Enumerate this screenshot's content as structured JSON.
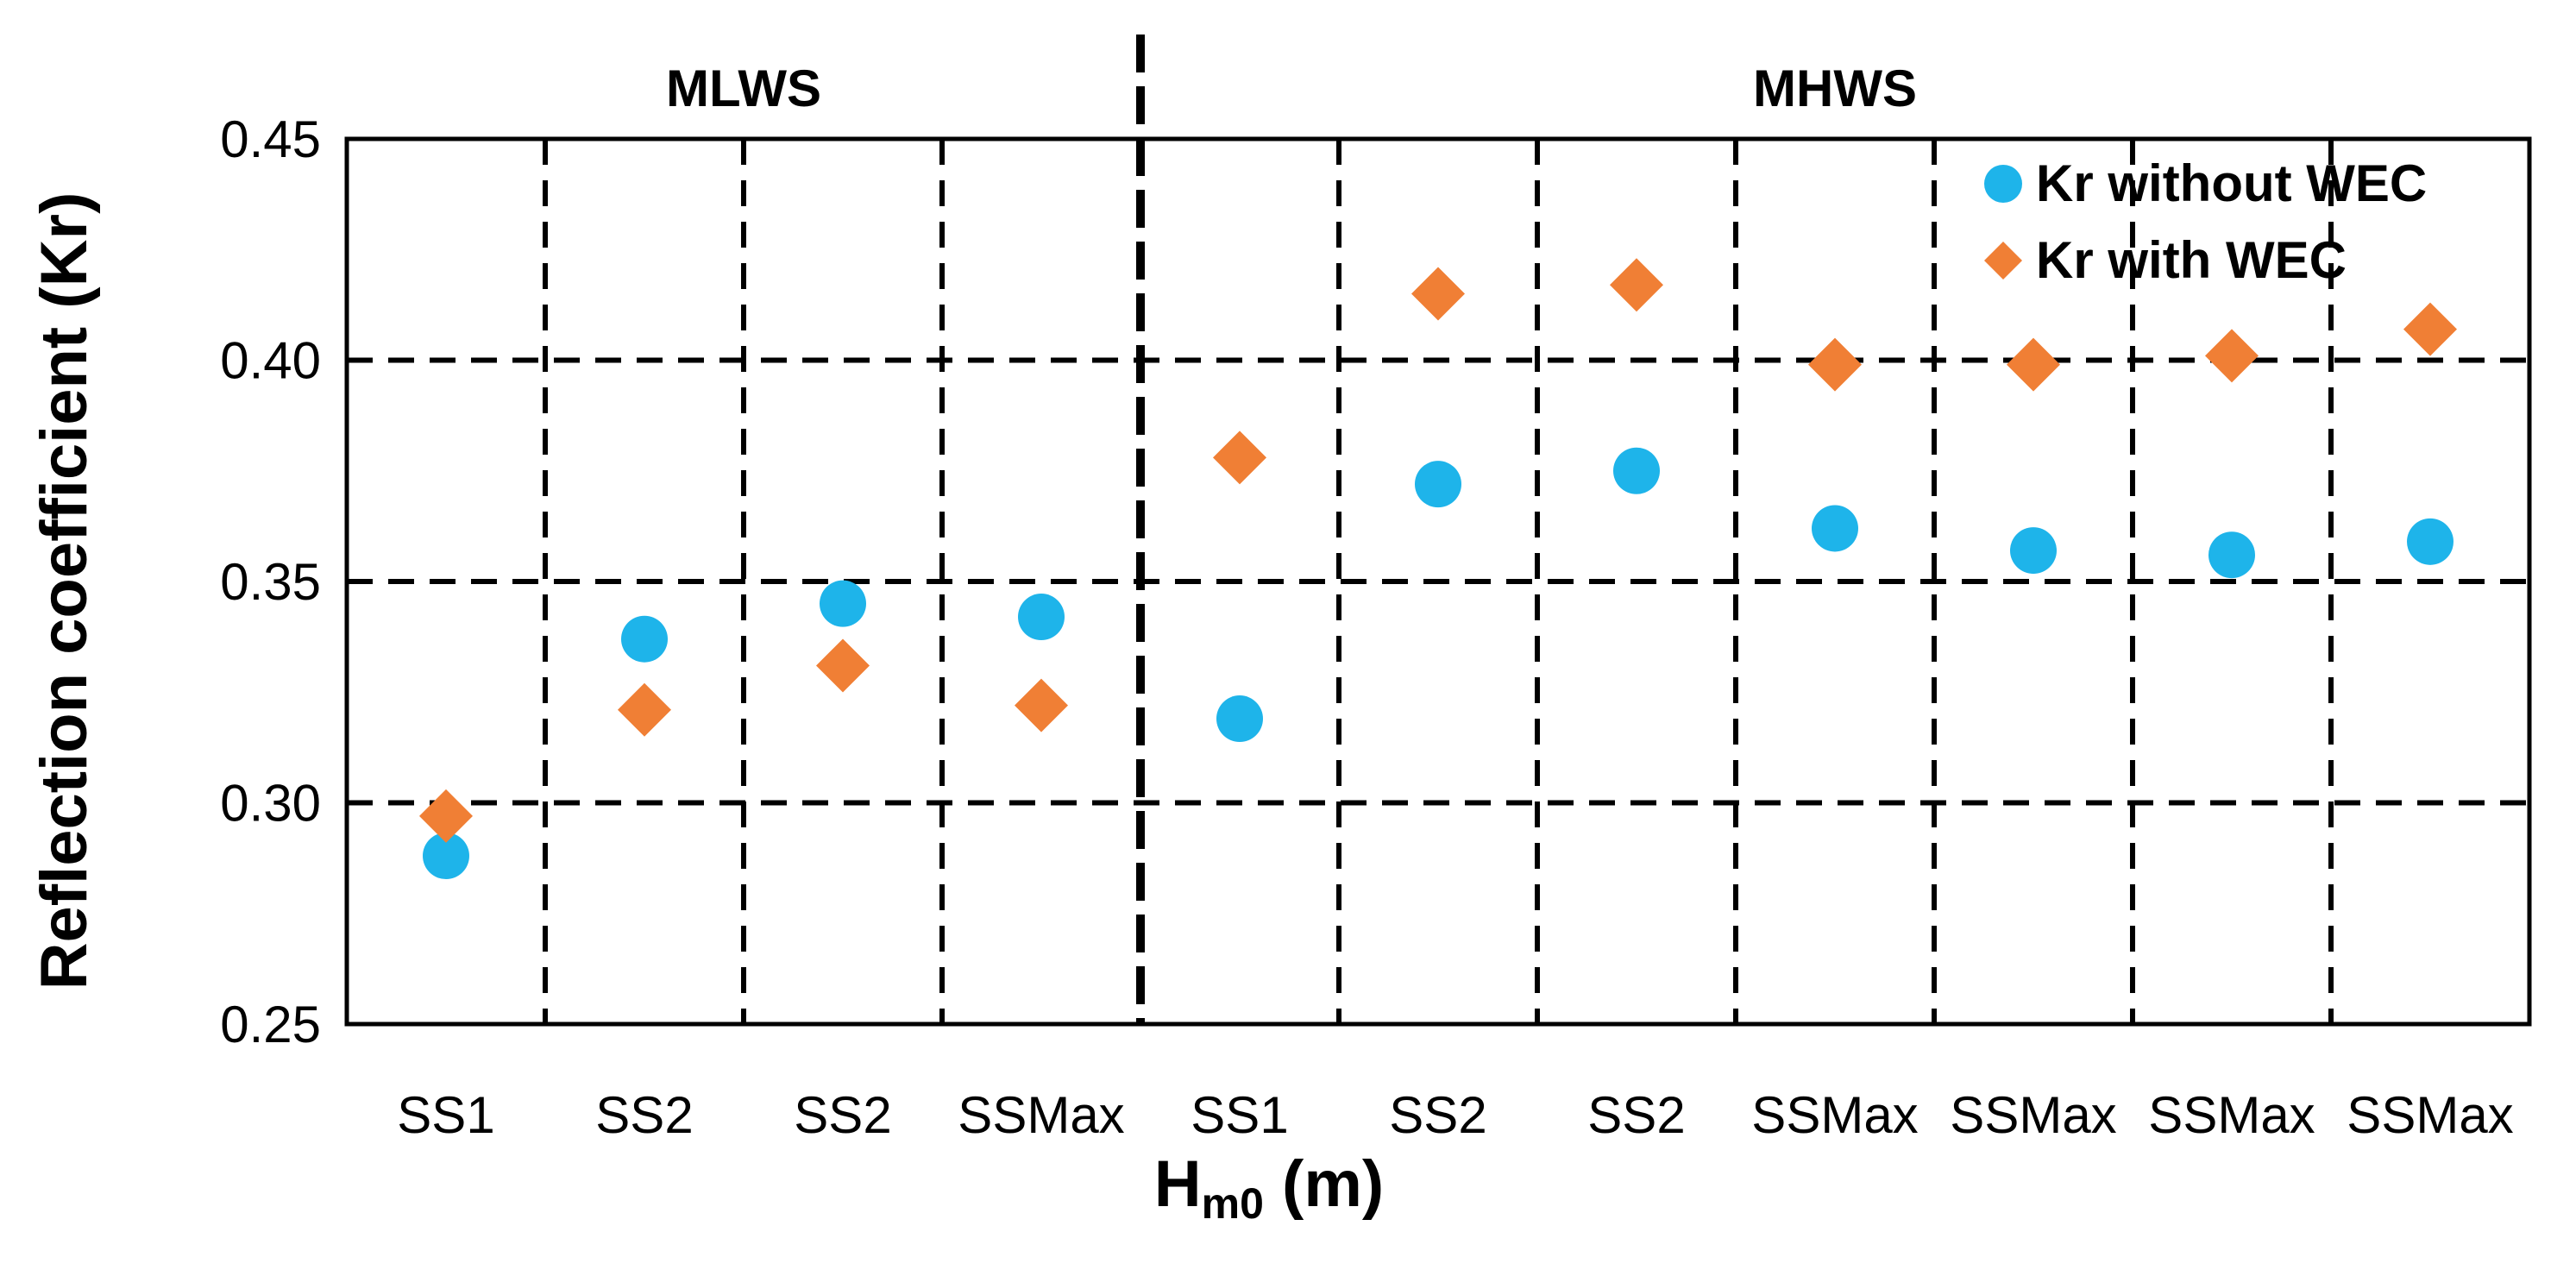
{
  "chart_data": {
    "type": "scatter",
    "ylabel": "Reflection coefficient (Kr)",
    "xlabel": {
      "main": "H",
      "subscript": "m0",
      "unit": " (m)"
    },
    "ylim": [
      0.25,
      0.45
    ],
    "yticks": [
      "0.25",
      "0.30",
      "0.35",
      "0.40",
      "0.45"
    ],
    "ytick_values": [
      0.25,
      0.3,
      0.35,
      0.4,
      0.45
    ],
    "categories": [
      "SS1",
      "SS2",
      "SS2",
      "SSMax",
      "SS1",
      "SS2",
      "SS2",
      "SSMax",
      "SSMax",
      "SSMax",
      "SSMax"
    ],
    "groups": [
      {
        "label": "MLWS",
        "count": 4
      },
      {
        "label": "MHWS",
        "count": 7
      }
    ],
    "grid": true,
    "legend_position": "top-right",
    "series": [
      {
        "name": "Kr without WEC",
        "marker": "circle",
        "color": "#1EB4EA",
        "values": [
          0.288,
          0.337,
          0.345,
          0.342,
          0.319,
          0.372,
          0.375,
          0.362,
          0.357,
          0.356,
          0.359
        ]
      },
      {
        "name": "Kr with WEC",
        "marker": "diamond",
        "color": "#F07F35",
        "values": [
          0.297,
          0.321,
          0.331,
          0.322,
          0.378,
          0.415,
          0.417,
          0.399,
          0.399,
          0.401,
          0.407
        ]
      }
    ]
  }
}
